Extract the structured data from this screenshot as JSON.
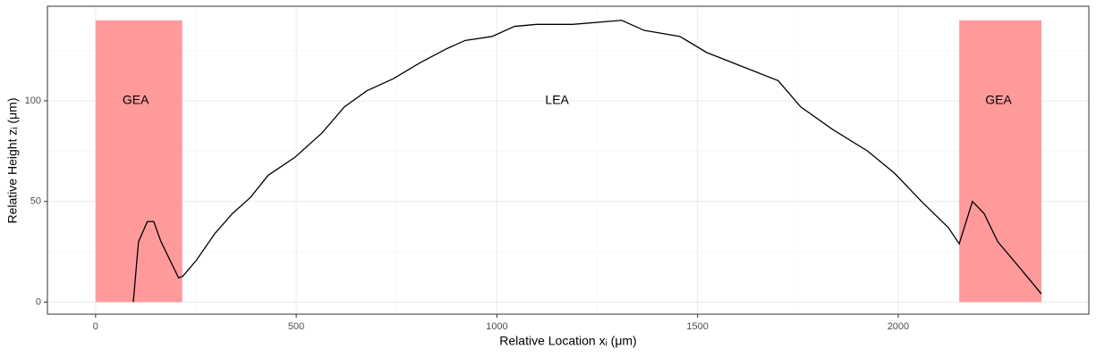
{
  "chart_data": {
    "type": "line",
    "x_label": "Relative Location xᵢ (μm)",
    "y_label": "Relative Height zᵢ (μm)",
    "xlim": [
      -120,
      2475
    ],
    "ylim": [
      -6,
      147
    ],
    "xticks": [
      0,
      500,
      1000,
      1500,
      2000
    ],
    "yticks": [
      0,
      50,
      100
    ],
    "grid": true,
    "color": "#000000",
    "regions": [
      {
        "xmin": 0,
        "xmax": 216,
        "ymin": 0,
        "ymax": 140,
        "color": "#ff9a9a"
      },
      {
        "xmin": 2152,
        "xmax": 2357,
        "ymin": 0,
        "ymax": 140,
        "color": "#ff9a9a"
      }
    ],
    "annotations": [
      {
        "text": "GEA",
        "x": 100,
        "y": 100
      },
      {
        "text": "LEA",
        "x": 1150,
        "y": 100
      },
      {
        "text": "GEA",
        "x": 2250,
        "y": 100
      }
    ],
    "x": [
      94,
      107,
      129,
      145,
      163,
      185,
      207,
      218,
      252,
      297,
      341,
      386,
      430,
      497,
      564,
      620,
      676,
      742,
      809,
      876,
      921,
      988,
      1044,
      1099,
      1189,
      1311,
      1367,
      1456,
      1523,
      1612,
      1701,
      1757,
      1835,
      1924,
      1991,
      2058,
      2125,
      2152,
      2185,
      2214,
      2248,
      2303,
      2357
    ],
    "values": [
      0,
      30,
      40,
      40,
      30,
      21,
      12,
      13,
      21,
      34,
      44,
      52,
      63,
      72,
      84,
      97,
      105,
      111,
      119,
      126,
      130,
      132,
      137,
      138,
      138,
      140,
      135,
      132,
      124,
      117,
      110,
      97,
      86,
      75,
      64,
      50,
      37,
      29,
      50,
      44,
      30,
      17,
      4
    ]
  }
}
